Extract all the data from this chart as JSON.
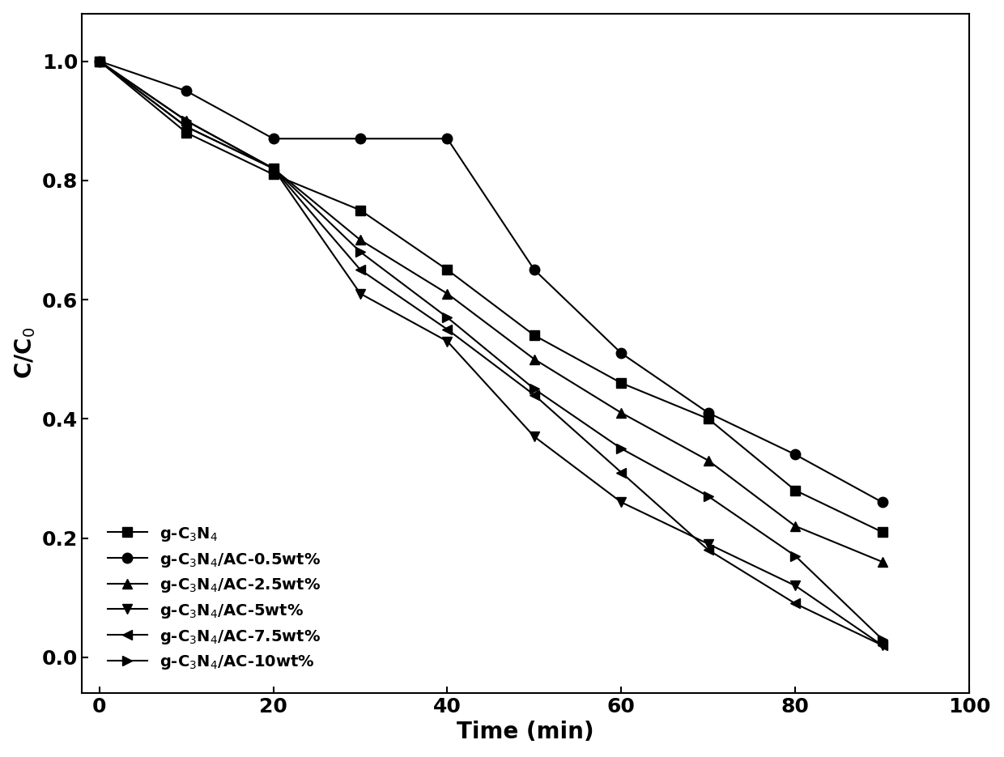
{
  "series": [
    {
      "label": "g-C$_3$N$_4$",
      "marker": "s",
      "x": [
        0,
        10,
        20,
        30,
        40,
        50,
        60,
        70,
        80,
        90
      ],
      "y": [
        1.0,
        0.88,
        0.81,
        0.75,
        0.65,
        0.54,
        0.46,
        0.4,
        0.28,
        0.21
      ]
    },
    {
      "label": "g-C$_3$N$_4$/AC-0.5wt%",
      "marker": "o",
      "x": [
        0,
        10,
        20,
        30,
        40,
        50,
        60,
        70,
        80,
        90
      ],
      "y": [
        1.0,
        0.95,
        0.87,
        0.87,
        0.87,
        0.65,
        0.51,
        0.41,
        0.34,
        0.26
      ]
    },
    {
      "label": "g-C$_3$N$_4$/AC-2.5wt%",
      "marker": "^",
      "x": [
        0,
        10,
        20,
        30,
        40,
        50,
        60,
        70,
        80,
        90
      ],
      "y": [
        1.0,
        0.9,
        0.82,
        0.7,
        0.61,
        0.5,
        0.41,
        0.33,
        0.22,
        0.16
      ]
    },
    {
      "label": "g-C$_3$N$_4$/AC-5wt%",
      "marker": "v",
      "x": [
        0,
        10,
        20,
        30,
        40,
        50,
        60,
        70,
        80,
        90
      ],
      "y": [
        1.0,
        0.89,
        0.82,
        0.61,
        0.53,
        0.37,
        0.26,
        0.19,
        0.12,
        0.02
      ]
    },
    {
      "label": "g-C$_3$N$_4$/AC-7.5wt%",
      "marker": "<",
      "x": [
        0,
        10,
        20,
        30,
        40,
        50,
        60,
        70,
        80,
        90
      ],
      "y": [
        1.0,
        0.89,
        0.82,
        0.65,
        0.55,
        0.44,
        0.31,
        0.18,
        0.09,
        0.02
      ]
    },
    {
      "label": "g-C$_3$N$_4$/AC-10wt%",
      "marker": ">",
      "x": [
        0,
        10,
        20,
        30,
        40,
        50,
        60,
        70,
        80,
        90
      ],
      "y": [
        1.0,
        0.9,
        0.82,
        0.68,
        0.57,
        0.45,
        0.35,
        0.27,
        0.17,
        0.03
      ]
    }
  ],
  "xlabel": "Time (min)",
  "ylabel": "C/C$_0$",
  "xlim": [
    -2,
    100
  ],
  "ylim": [
    -0.06,
    1.08
  ],
  "xticks": [
    0,
    20,
    40,
    60,
    80,
    100
  ],
  "yticks": [
    0.0,
    0.2,
    0.4,
    0.6,
    0.8,
    1.0
  ],
  "line_color": "#000000",
  "marker_color": "#000000",
  "marker_size": 9,
  "line_width": 1.5,
  "legend_loc": "lower left",
  "background_color": "#ffffff",
  "font_size": 20,
  "tick_font_size": 18,
  "legend_fontsize": 14
}
